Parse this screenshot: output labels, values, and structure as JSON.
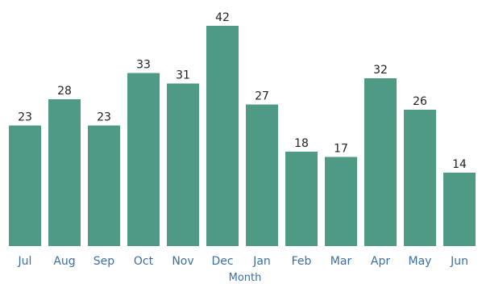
{
  "chart_data": {
    "type": "bar",
    "xlabel": "Month",
    "ylabel": "",
    "categories": [
      "Jul",
      "Aug",
      "Sep",
      "Oct",
      "Nov",
      "Dec",
      "Jan",
      "Feb",
      "Mar",
      "Apr",
      "May",
      "Jun"
    ],
    "values": [
      23,
      28,
      23,
      33,
      31,
      42,
      27,
      18,
      17,
      32,
      26,
      14
    ],
    "data_labels": [
      "23",
      "28",
      "23",
      "33",
      "31",
      "42",
      "27",
      "18",
      "17",
      "32",
      "26",
      "14"
    ],
    "ylim": [
      0,
      42
    ],
    "grid": false,
    "legend": "none",
    "bar_color": "#4f9a84",
    "label_color": "#3a6ea5",
    "value_label_color": "#222222"
  }
}
